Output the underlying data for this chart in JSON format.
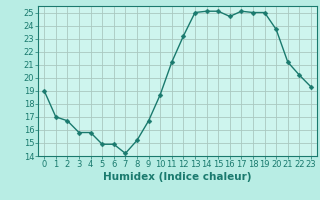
{
  "x": [
    0,
    1,
    2,
    3,
    4,
    5,
    6,
    7,
    8,
    9,
    10,
    11,
    12,
    13,
    14,
    15,
    16,
    17,
    18,
    19,
    20,
    21,
    22,
    23
  ],
  "y": [
    19,
    17,
    16.7,
    15.8,
    15.8,
    14.9,
    14.9,
    14.2,
    15.2,
    16.7,
    18.7,
    21.2,
    23.2,
    25.0,
    25.1,
    25.1,
    24.7,
    25.1,
    25.0,
    25.0,
    23.7,
    21.2,
    20.2,
    19.3
  ],
  "line_color": "#1a7a6e",
  "marker_color": "#1a7a6e",
  "bg_color": "#b8ede4",
  "plot_bg_color": "#cef5ee",
  "grid_color": "#aac8c0",
  "xlabel": "Humidex (Indice chaleur)",
  "ylim": [
    14,
    25.5
  ],
  "xlim": [
    -0.5,
    23.5
  ],
  "yticks": [
    14,
    15,
    16,
    17,
    18,
    19,
    20,
    21,
    22,
    23,
    24,
    25
  ],
  "xticks": [
    0,
    1,
    2,
    3,
    4,
    5,
    6,
    7,
    8,
    9,
    10,
    11,
    12,
    13,
    14,
    15,
    16,
    17,
    18,
    19,
    20,
    21,
    22,
    23
  ],
  "xtick_labels": [
    "0",
    "1",
    "2",
    "3",
    "4",
    "5",
    "6",
    "7",
    "8",
    "9",
    "10",
    "11",
    "12",
    "13",
    "14",
    "15",
    "16",
    "17",
    "18",
    "19",
    "20",
    "21",
    "22",
    "23"
  ],
  "xlabel_fontsize": 7.5,
  "tick_fontsize": 6,
  "marker_size": 2.5,
  "line_width": 1.0
}
